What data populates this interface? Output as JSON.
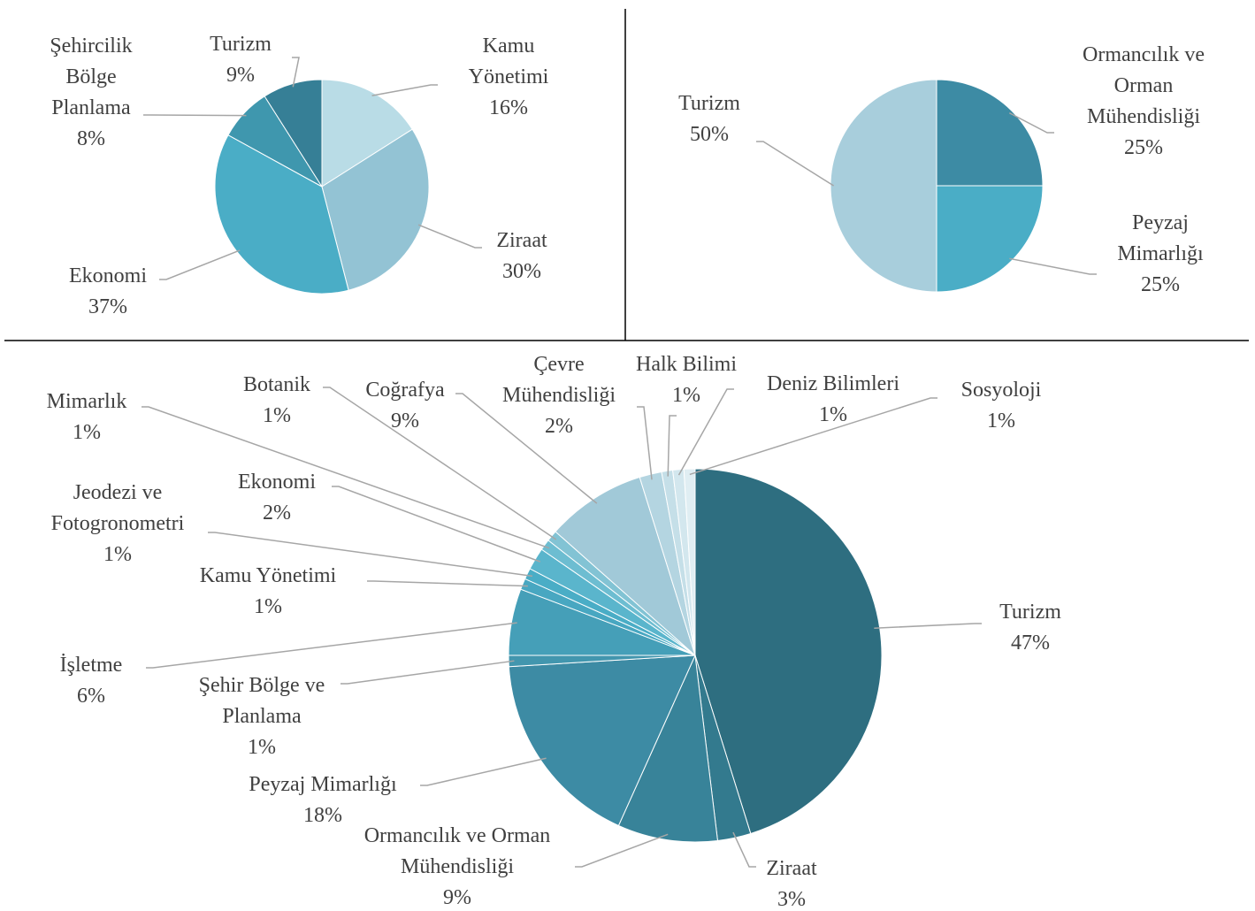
{
  "chart_data": [
    {
      "type": "pie",
      "categories": [
        "Kamu Yönetimi",
        "Ziraat",
        "Ekonomi",
        "Şehircilik Bölge Planlama",
        "Turizm"
      ],
      "values": [
        16,
        30,
        37,
        8,
        9
      ],
      "value_labels": [
        "16%",
        "30%",
        "37%",
        "8%",
        "9%"
      ],
      "colors": [
        "#b9dce6",
        "#93c3d4",
        "#4aadc6",
        "#3f97ae",
        "#367f96"
      ]
    },
    {
      "type": "pie",
      "categories": [
        "Ormancılık ve Orman Mühendisliği",
        "Peyzaj Mimarlığı",
        "Turizm"
      ],
      "values": [
        25,
        25,
        50
      ],
      "value_labels": [
        "25%",
        "25%",
        "50%"
      ],
      "colors": [
        "#3d8ba4",
        "#4aadc6",
        "#a8cedc"
      ]
    },
    {
      "type": "pie",
      "categories": [
        "Turizm",
        "Ziraat",
        "Ormancılık ve Orman Mühendisliği",
        "Peyzaj Mimarlığı",
        "Şehir Bölge ve Planlama",
        "İşletme",
        "Kamu Yönetimi",
        "Jeodezi ve Fotogronometri",
        "Ekonomi",
        "Mimarlık",
        "Botanik",
        "Coğrafya",
        "Çevre Mühendisliği",
        "Halk Bilimi",
        "Deniz Bilimleri",
        "Sosyoloji"
      ],
      "values": [
        47,
        3,
        9,
        18,
        1,
        6,
        1,
        1,
        2,
        1,
        1,
        9,
        2,
        1,
        1,
        1
      ],
      "value_labels": [
        "47%",
        "3%",
        "9%",
        "18%",
        "1%",
        "6%",
        "1%",
        "1%",
        "2%",
        "1%",
        "1%",
        "9%",
        "2%",
        "1%",
        "1%",
        "1%"
      ],
      "colors": [
        "#2e6e80",
        "#337a8e",
        "#388399",
        "#3d8ba4",
        "#4296ae",
        "#459fb8",
        "#48a7c1",
        "#4aadc6",
        "#5ab5cc",
        "#6dbdd1",
        "#82c3d4",
        "#a1c9d8",
        "#b4d5e1",
        "#c5dfe8",
        "#d3e7ee",
        "#e0eef3"
      ]
    }
  ]
}
